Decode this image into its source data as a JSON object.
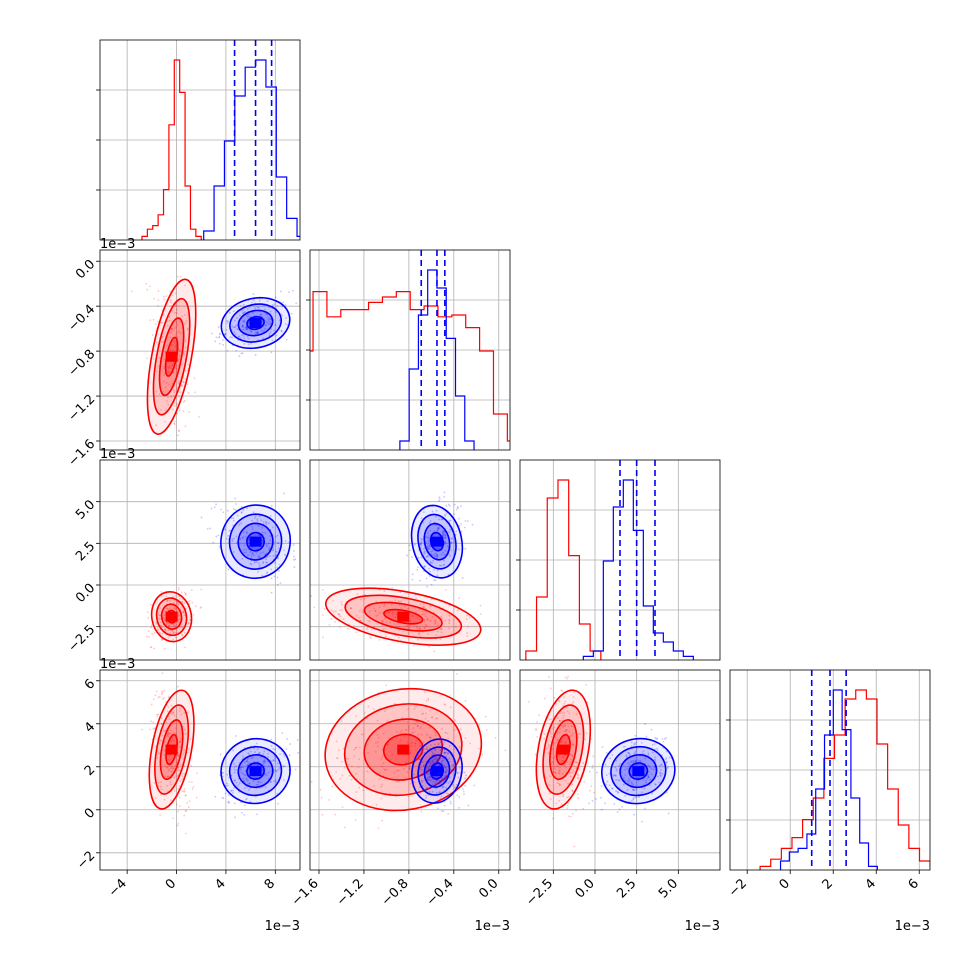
{
  "chart_data": {
    "type": "corner",
    "colors": {
      "series_a": "#ff0000",
      "series_b": "#0000ff",
      "grid": "#b0b0b0"
    },
    "grid": true,
    "parameters": [
      {
        "range": [
          -6.2,
          10.0
        ],
        "ticks": [
          "−4",
          "0",
          "4",
          "8"
        ],
        "tick_values": [
          -4,
          0,
          4,
          8
        ],
        "offset_text": "1e−3"
      },
      {
        "range": [
          -1.68,
          0.1
        ],
        "ticks": [
          "−1.6",
          "−1.2",
          "−0.8",
          "−0.4",
          "0.0"
        ],
        "tick_values": [
          -1.6,
          -1.2,
          -0.8,
          -0.4,
          0.0
        ],
        "offset_text": "1e−3"
      },
      {
        "range": [
          -4.5,
          7.5
        ],
        "ticks": [
          "−2.5",
          "0.0",
          "2.5",
          "5.0"
        ],
        "tick_values": [
          -2.5,
          0.0,
          2.5,
          5.0
        ],
        "offset_text": "1e−3"
      },
      {
        "range": [
          -2.8,
          6.5
        ],
        "ticks": [
          "−2",
          "0",
          "2",
          "4",
          "6"
        ],
        "tick_values": [
          -2,
          0,
          2,
          4,
          6
        ],
        "offset_text": "1e−3"
      }
    ],
    "series": [
      {
        "color": "#ff0000",
        "means": [
          -0.4,
          -0.85,
          -1.9,
          2.8
        ],
        "sds": [
          0.8,
          0.35,
          0.75,
          1.4
        ],
        "hist": [
          [
            0.02,
            0.06,
            0.08,
            0.14,
            0.28,
            0.64,
            1.0,
            0.82,
            0.3,
            0.06,
            0.02
          ],
          [
            0.05,
            0.55,
            0.88,
            0.74,
            0.78,
            0.78,
            0.82,
            0.85,
            0.88,
            0.78,
            0.8,
            0.74,
            0.75,
            0.68,
            0.55,
            0.2,
            0.05
          ],
          [
            0.05,
            0.35,
            0.9,
            1.0,
            0.58,
            0.2,
            0.05
          ],
          [
            0.02,
            0.06,
            0.12,
            0.18,
            0.28,
            0.4,
            0.62,
            0.75,
            0.95,
            1.0,
            0.95,
            0.7,
            0.45,
            0.25,
            0.12,
            0.05,
            0.02
          ]
        ]
      },
      {
        "color": "#0000ff",
        "means": [
          6.4,
          -0.55,
          2.6,
          1.8
        ],
        "sds": [
          1.4,
          0.11,
          1.1,
          0.75
        ],
        "quantiles": [
          [
            4.7,
            6.4,
            7.7
          ],
          [
            -0.69,
            -0.55,
            -0.48
          ],
          [
            1.5,
            2.5,
            3.6
          ],
          [
            1.0,
            1.85,
            2.6
          ]
        ],
        "hist": [
          [
            0.05,
            0.3,
            0.55,
            0.8,
            0.96,
            1.0,
            0.85,
            0.35,
            0.12,
            0.02
          ],
          [
            0.05,
            0.45,
            0.75,
            1.0,
            0.9,
            0.62,
            0.3,
            0.05
          ],
          [
            0.02,
            0.05,
            0.55,
            0.85,
            1.0,
            0.72,
            0.3,
            0.15,
            0.1,
            0.05,
            0.02
          ],
          [
            0.05,
            0.1,
            0.12,
            0.2,
            0.45,
            0.75,
            1.0,
            0.78,
            0.4,
            0.15,
            0.02
          ]
        ]
      }
    ]
  }
}
